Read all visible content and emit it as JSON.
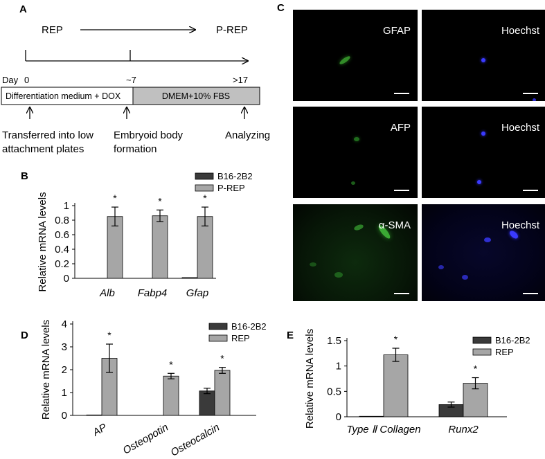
{
  "panels": {
    "A": {
      "letter": "A",
      "rep": "REP",
      "prep": "P-REP",
      "day_label": "Day",
      "day0": "0",
      "day7": "~7",
      "day17": ">17",
      "box1": "Differentiation medium + DOX",
      "box2": "DMEM+10% FBS",
      "step1_line1": "Transferred into low",
      "step1_line2": "attachment plates",
      "step2_line1": "Embryoid body",
      "step2_line2": "formation",
      "step3": "Analyzing"
    },
    "B": {
      "letter": "B"
    },
    "C": {
      "letter": "C",
      "labels": [
        "GFAP",
        "Hoechst",
        "AFP",
        "Hoechst",
        "α-SMA",
        "Hoechst"
      ]
    },
    "D": {
      "letter": "D"
    },
    "E": {
      "letter": "E"
    }
  },
  "chart_data": [
    {
      "id": "B",
      "type": "bar",
      "categories": [
        "Alb",
        "Fabp4",
        "Gfap"
      ],
      "series": [
        {
          "name": "B16-2B2",
          "values": [
            0,
            0,
            0.01
          ],
          "errors": [
            0,
            0,
            0
          ],
          "color": "#3a3a3a"
        },
        {
          "name": "P-REP",
          "values": [
            0.85,
            0.86,
            0.85
          ],
          "errors": [
            0.13,
            0.08,
            0.13
          ],
          "color": "#a6a6a6"
        }
      ],
      "significance": [
        "*",
        "*",
        "*"
      ],
      "ylabel": "Relative mRNA levels",
      "yticks": [
        "0",
        "0.2",
        "0.4",
        "0.6",
        "0.8",
        "1"
      ],
      "ylim": [
        0,
        1
      ],
      "legend": "top-right"
    },
    {
      "id": "D",
      "type": "bar",
      "categories": [
        "AP",
        "Osteopotin",
        "Osteocalcin"
      ],
      "series": [
        {
          "name": "B16-2B2",
          "values": [
            0.02,
            0,
            1.07
          ],
          "errors": [
            0,
            0,
            0.12
          ],
          "color": "#3a3a3a"
        },
        {
          "name": "REP",
          "values": [
            2.5,
            1.72,
            1.97
          ],
          "errors": [
            0.62,
            0.12,
            0.13
          ],
          "color": "#a6a6a6"
        }
      ],
      "significance": [
        "*",
        "*",
        "*"
      ],
      "ylabel": "Relative mRNA levels",
      "yticks": [
        "0",
        "1",
        "2",
        "3",
        "4"
      ],
      "ylim": [
        0,
        4
      ],
      "legend": "top-right"
    },
    {
      "id": "E",
      "type": "bar",
      "categories": [
        "Type Ⅱ Collagen",
        "Runx2"
      ],
      "series": [
        {
          "name": "B16-2B2",
          "values": [
            0.01,
            0.24
          ],
          "errors": [
            0,
            0.05
          ],
          "color": "#3a3a3a"
        },
        {
          "name": "REP",
          "values": [
            1.22,
            0.66
          ],
          "errors": [
            0.13,
            0.11
          ],
          "color": "#a6a6a6"
        }
      ],
      "significance": [
        "*",
        "*"
      ],
      "ylabel": "Relative mRNA levels",
      "yticks": [
        "0",
        "0.5",
        "1",
        "1.5"
      ],
      "ylim": [
        0,
        1.5
      ],
      "legend": "top-right"
    }
  ]
}
